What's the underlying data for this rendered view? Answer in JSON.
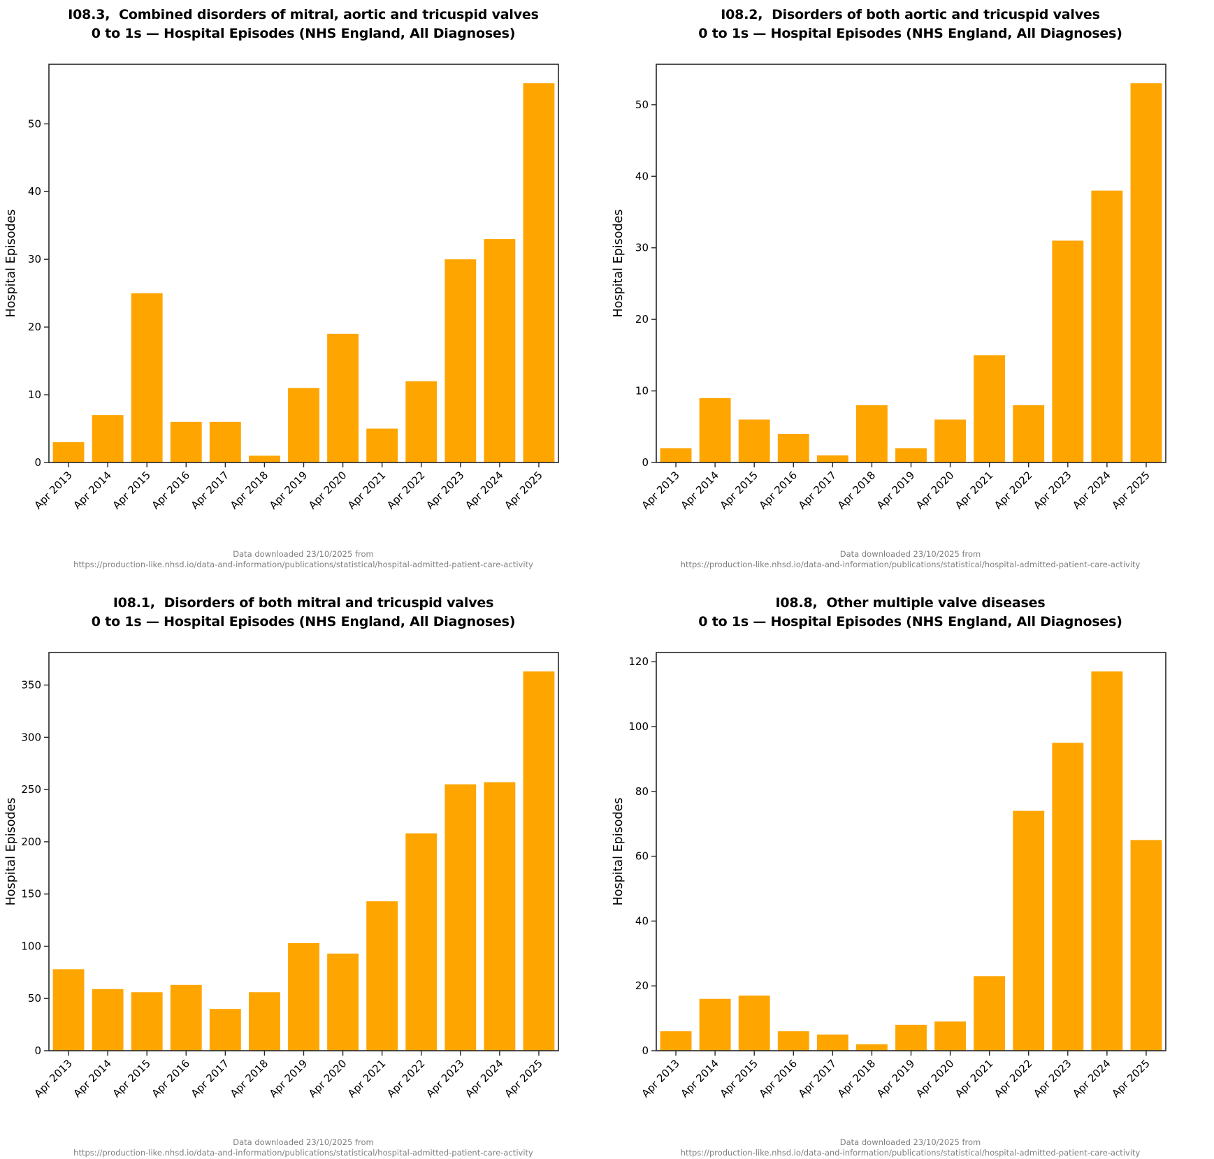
{
  "figure": {
    "background": "#ffffff",
    "bar_color": "#FFA500",
    "spine_color": "#262626",
    "text_color": "#000000",
    "caption_color": "#7f7f7f"
  },
  "chart_data": [
    {
      "type": "bar",
      "title_lines": [
        "I08.3,  Combined disorders of mitral, aortic and tricuspid valves",
        "0 to 1s — Hospital Episodes (NHS England, All Diagnoses)"
      ],
      "ylabel": "Hospital Episodes",
      "xlabel": "",
      "grid": false,
      "legend_position": "none",
      "categories": [
        "Apr 2013",
        "Apr 2014",
        "Apr 2015",
        "Apr 2016",
        "Apr 2017",
        "Apr 2018",
        "Apr 2019",
        "Apr 2020",
        "Apr 2021",
        "Apr 2022",
        "Apr 2023",
        "Apr 2024",
        "Apr 2025"
      ],
      "values": [
        3,
        7,
        25,
        6,
        6,
        1,
        11,
        19,
        5,
        12,
        30,
        33,
        56
      ],
      "ylim": [
        0,
        58.8
      ],
      "yticks": [
        0,
        10,
        20,
        30,
        40,
        50
      ],
      "caption_lines": [
        "Data downloaded 23/10/2025 from",
        "https://production-like.nhsd.io/data-and-information/publications/statistical/hospital-admitted-patient-care-activity"
      ]
    },
    {
      "type": "bar",
      "title_lines": [
        "I08.2,  Disorders of both aortic and tricuspid valves",
        "0 to 1s — Hospital Episodes (NHS England, All Diagnoses)"
      ],
      "ylabel": "Hospital Episodes",
      "xlabel": "",
      "grid": false,
      "legend_position": "none",
      "categories": [
        "Apr 2013",
        "Apr 2014",
        "Apr 2015",
        "Apr 2016",
        "Apr 2017",
        "Apr 2018",
        "Apr 2019",
        "Apr 2020",
        "Apr 2021",
        "Apr 2022",
        "Apr 2023",
        "Apr 2024",
        "Apr 2025"
      ],
      "values": [
        2,
        9,
        6,
        4,
        1,
        8,
        2,
        6,
        15,
        8,
        31,
        38,
        53
      ],
      "ylim": [
        0,
        55.65
      ],
      "yticks": [
        0,
        10,
        20,
        30,
        40,
        50
      ],
      "caption_lines": [
        "Data downloaded 23/10/2025 from",
        "https://production-like.nhsd.io/data-and-information/publications/statistical/hospital-admitted-patient-care-activity"
      ]
    },
    {
      "type": "bar",
      "title_lines": [
        "I08.1,  Disorders of both mitral and tricuspid valves",
        "0 to 1s — Hospital Episodes (NHS England, All Diagnoses)"
      ],
      "ylabel": "Hospital Episodes",
      "xlabel": "",
      "grid": false,
      "legend_position": "none",
      "categories": [
        "Apr 2013",
        "Apr 2014",
        "Apr 2015",
        "Apr 2016",
        "Apr 2017",
        "Apr 2018",
        "Apr 2019",
        "Apr 2020",
        "Apr 2021",
        "Apr 2022",
        "Apr 2023",
        "Apr 2024",
        "Apr 2025"
      ],
      "values": [
        78,
        59,
        56,
        63,
        40,
        56,
        103,
        93,
        143,
        208,
        255,
        257,
        363
      ],
      "ylim": [
        0,
        381.15
      ],
      "yticks": [
        0,
        50,
        100,
        150,
        200,
        250,
        300,
        350
      ],
      "caption_lines": [
        "Data downloaded 23/10/2025 from",
        "https://production-like.nhsd.io/data-and-information/publications/statistical/hospital-admitted-patient-care-activity"
      ]
    },
    {
      "type": "bar",
      "title_lines": [
        "I08.8,  Other multiple valve diseases",
        "0 to 1s — Hospital Episodes (NHS England, All Diagnoses)"
      ],
      "ylabel": "Hospital Episodes",
      "xlabel": "",
      "grid": false,
      "legend_position": "none",
      "categories": [
        "Apr 2013",
        "Apr 2014",
        "Apr 2015",
        "Apr 2016",
        "Apr 2017",
        "Apr 2018",
        "Apr 2019",
        "Apr 2020",
        "Apr 2021",
        "Apr 2022",
        "Apr 2023",
        "Apr 2024",
        "Apr 2025"
      ],
      "values": [
        6,
        16,
        17,
        6,
        5,
        2,
        8,
        9,
        23,
        74,
        95,
        117,
        65
      ],
      "ylim": [
        0,
        122.85
      ],
      "yticks": [
        0,
        20,
        40,
        60,
        80,
        100,
        120
      ],
      "caption_lines": [
        "Data downloaded 23/10/2025 from",
        "https://production-like.nhsd.io/data-and-information/publications/statistical/hospital-admitted-patient-care-activity"
      ]
    }
  ]
}
